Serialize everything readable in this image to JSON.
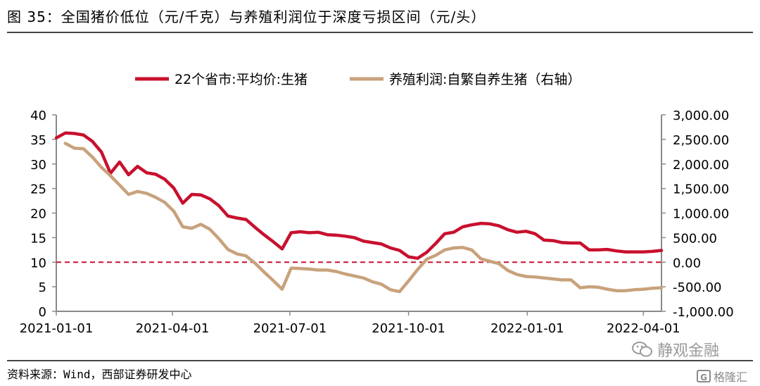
{
  "header": {
    "title": "图 35：全国猪价低位（元/千克）与养殖利润位于深度亏损区间（元/头）"
  },
  "footer": {
    "source": "资料来源：Wind，西部证券研发中心"
  },
  "watermark": {
    "brand": "静观金融",
    "site": "格隆汇",
    "logo_letter": "G"
  },
  "chart_data": {
    "type": "line",
    "title": "",
    "x_tick_labels": [
      "2021-01-01",
      "2021-04-01",
      "2021-07-01",
      "2021-10-01",
      "2022-01-01",
      "2022-04-01"
    ],
    "x_ticks": [
      "2021-01-01",
      "2021-04-01",
      "2021-07-01",
      "2021-10-01",
      "2022-01-01",
      "2022-04-01"
    ],
    "xlim": [
      "2021-01-01",
      "2022-04-15"
    ],
    "y_left": {
      "ylim": [
        0,
        40
      ],
      "ticks": [
        "0",
        "5",
        "10",
        "15",
        "20",
        "25",
        "30",
        "35",
        "40"
      ]
    },
    "y_right": {
      "ylim": [
        -1000,
        3000
      ],
      "ticks": [
        "-1,000.00",
        "-500.00",
        "0.00",
        "500.00",
        "1,000.00",
        "1,500.00",
        "2,000.00",
        "2,500.00",
        "3,000.00"
      ]
    },
    "reference_line": {
      "axis": "left",
      "value": 10,
      "style": "dashed",
      "color": "#c8102e"
    },
    "legend_position": "top",
    "series": [
      {
        "name": "22个省市:平均价:生猪",
        "axis": "left",
        "color": "#c8102e",
        "x": [
          "2021-01-01",
          "2021-01-08",
          "2021-01-15",
          "2021-01-22",
          "2021-01-29",
          "2021-02-05",
          "2021-02-12",
          "2021-02-19",
          "2021-02-26",
          "2021-03-05",
          "2021-03-12",
          "2021-03-19",
          "2021-03-26",
          "2021-04-02",
          "2021-04-09",
          "2021-04-16",
          "2021-04-23",
          "2021-04-30",
          "2021-05-07",
          "2021-05-14",
          "2021-05-21",
          "2021-05-28",
          "2021-06-04",
          "2021-06-11",
          "2021-06-18",
          "2021-06-25",
          "2021-07-02",
          "2021-07-09",
          "2021-07-16",
          "2021-07-23",
          "2021-07-30",
          "2021-08-06",
          "2021-08-13",
          "2021-08-20",
          "2021-08-27",
          "2021-09-03",
          "2021-09-10",
          "2021-09-17",
          "2021-09-24",
          "2021-10-01",
          "2021-10-08",
          "2021-10-15",
          "2021-10-22",
          "2021-10-29",
          "2021-11-05",
          "2021-11-12",
          "2021-11-19",
          "2021-11-26",
          "2021-12-03",
          "2021-12-10",
          "2021-12-17",
          "2021-12-24",
          "2021-12-31",
          "2022-01-07",
          "2022-01-14",
          "2022-01-21",
          "2022-01-28",
          "2022-02-04",
          "2022-02-11",
          "2022-02-18",
          "2022-02-25",
          "2022-03-04",
          "2022-03-11",
          "2022-03-18",
          "2022-03-25",
          "2022-04-01",
          "2022-04-08",
          "2022-04-15"
        ],
        "values": [
          35.3,
          36.3,
          36.2,
          35.9,
          34.6,
          32.4,
          28.1,
          30.4,
          27.8,
          29.5,
          28.2,
          27.9,
          26.9,
          25.1,
          22.0,
          23.8,
          23.7,
          22.9,
          21.5,
          19.4,
          19.0,
          18.7,
          17.1,
          15.6,
          14.2,
          12.7,
          16.0,
          16.2,
          16.0,
          16.1,
          15.6,
          15.5,
          15.3,
          15.0,
          14.3,
          14.0,
          13.7,
          12.9,
          12.4,
          11.1,
          10.8,
          12.0,
          13.8,
          15.8,
          16.1,
          17.2,
          17.6,
          17.9,
          17.8,
          17.4,
          16.6,
          16.1,
          16.3,
          15.8,
          14.5,
          14.4,
          14.0,
          13.9,
          13.9,
          12.5,
          12.5,
          12.6,
          12.3,
          12.1,
          12.1,
          12.1,
          12.2,
          12.4
        ]
      },
      {
        "name": "养殖利润:自繁自养生猪（右轴）",
        "axis": "right",
        "color": "#c8a27c",
        "x": [
          "2021-01-08",
          "2021-01-15",
          "2021-01-22",
          "2021-01-29",
          "2021-02-05",
          "2021-02-12",
          "2021-02-19",
          "2021-02-26",
          "2021-03-05",
          "2021-03-12",
          "2021-03-19",
          "2021-03-26",
          "2021-04-02",
          "2021-04-09",
          "2021-04-16",
          "2021-04-23",
          "2021-04-30",
          "2021-05-07",
          "2021-05-14",
          "2021-05-21",
          "2021-05-28",
          "2021-06-04",
          "2021-06-11",
          "2021-06-18",
          "2021-06-25",
          "2021-07-02",
          "2021-07-09",
          "2021-07-16",
          "2021-07-23",
          "2021-07-30",
          "2021-08-06",
          "2021-08-13",
          "2021-08-20",
          "2021-08-27",
          "2021-09-03",
          "2021-09-10",
          "2021-09-17",
          "2021-09-24",
          "2021-10-01",
          "2021-10-08",
          "2021-10-15",
          "2021-10-22",
          "2021-10-29",
          "2021-11-05",
          "2021-11-12",
          "2021-11-19",
          "2021-11-26",
          "2021-12-03",
          "2021-12-10",
          "2021-12-17",
          "2021-12-24",
          "2021-12-31",
          "2022-01-07",
          "2022-01-14",
          "2022-01-21",
          "2022-01-28",
          "2022-02-04",
          "2022-02-11",
          "2022-02-18",
          "2022-02-25",
          "2022-03-04",
          "2022-03-11",
          "2022-03-18",
          "2022-03-25",
          "2022-04-01",
          "2022-04-08",
          "2022-04-15"
        ],
        "values": [
          2420,
          2320,
          2310,
          2140,
          1930,
          1760,
          1570,
          1380,
          1440,
          1400,
          1320,
          1220,
          1040,
          720,
          690,
          770,
          670,
          480,
          260,
          170,
          130,
          -20,
          -200,
          -370,
          -550,
          -120,
          -130,
          -140,
          -160,
          -160,
          -190,
          -240,
          -280,
          -320,
          -400,
          -450,
          -560,
          -600,
          -380,
          -150,
          60,
          140,
          250,
          290,
          300,
          250,
          70,
          20,
          -30,
          -170,
          -250,
          -290,
          -300,
          -320,
          -340,
          -360,
          -360,
          -520,
          -500,
          -510,
          -550,
          -580,
          -580,
          -560,
          -550,
          -530,
          -520
        ]
      }
    ]
  }
}
